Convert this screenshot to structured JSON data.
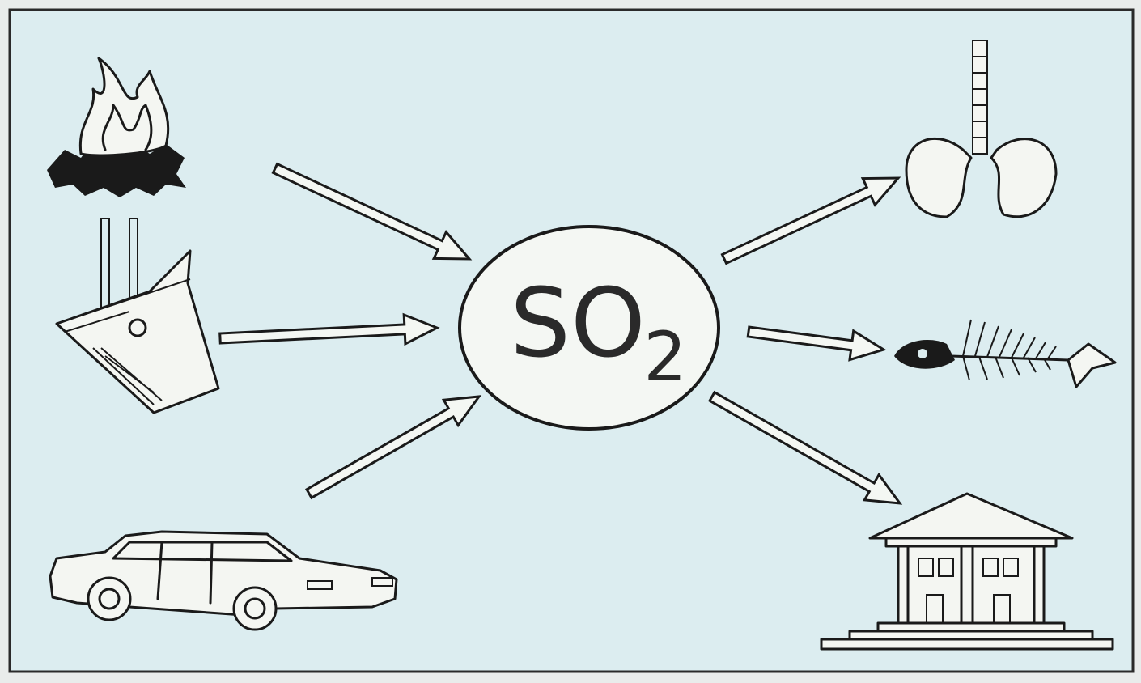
{
  "center": {
    "label": "SO",
    "subscript": "2"
  }
}
